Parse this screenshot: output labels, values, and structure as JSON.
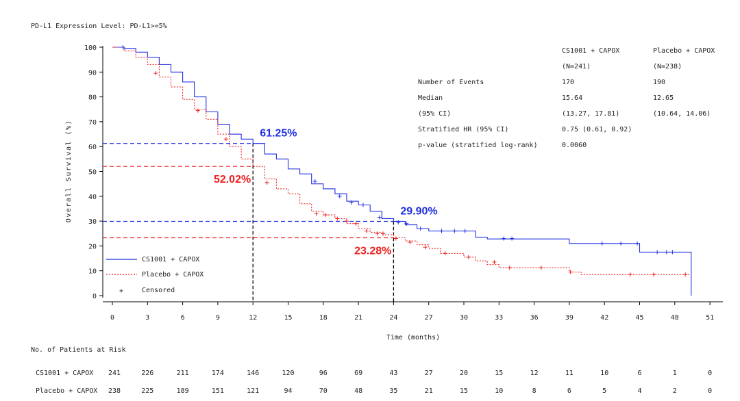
{
  "colors": {
    "arm1": "#1f2fe0",
    "arm2": "#ee2020",
    "axis": "#000000",
    "text": "#222222"
  },
  "chart_data": {
    "type": "line",
    "subtitle": "PD-L1 Expression Level: PD-L1>=5%",
    "xlabel": "Time (months)",
    "ylabel": "Overall Survival (%)",
    "xlim": [
      0,
      51
    ],
    "ylim": [
      0,
      100
    ],
    "xticks": [
      0,
      3,
      6,
      9,
      12,
      15,
      18,
      21,
      24,
      27,
      30,
      33,
      36,
      39,
      42,
      45,
      48,
      51
    ],
    "yticks": [
      0,
      10,
      20,
      30,
      40,
      50,
      60,
      70,
      80,
      90,
      100
    ],
    "legend": [
      "CS1001 + CAPOX",
      "Placebo + CAPOX",
      "Censored"
    ],
    "legend_censored_symbol": "+",
    "legend_position": "bottom-left",
    "series": [
      {
        "name": "CS1001 + CAPOX",
        "style": "solid",
        "points": [
          [
            0,
            100
          ],
          [
            1,
            99.5
          ],
          [
            2,
            98
          ],
          [
            3,
            96
          ],
          [
            4,
            93
          ],
          [
            5,
            90
          ],
          [
            6,
            86
          ],
          [
            7,
            80
          ],
          [
            8,
            74
          ],
          [
            9,
            69
          ],
          [
            10,
            65
          ],
          [
            11,
            63
          ],
          [
            12,
            61.25
          ],
          [
            13,
            57
          ],
          [
            14,
            55
          ],
          [
            15,
            51
          ],
          [
            16,
            49
          ],
          [
            17,
            45
          ],
          [
            18,
            43
          ],
          [
            19,
            41
          ],
          [
            20,
            38
          ],
          [
            21,
            36.5
          ],
          [
            22,
            34
          ],
          [
            23,
            31
          ],
          [
            24,
            29.9
          ],
          [
            25,
            28.5
          ],
          [
            26,
            27
          ],
          [
            27,
            26
          ],
          [
            28,
            26
          ],
          [
            30,
            26
          ],
          [
            31,
            23.5
          ],
          [
            32,
            22.8
          ],
          [
            33,
            22.8
          ],
          [
            35,
            22.8
          ],
          [
            38,
            22.8
          ],
          [
            39,
            21
          ],
          [
            41,
            21
          ],
          [
            43,
            21
          ],
          [
            44.5,
            21
          ],
          [
            45,
            17.5
          ],
          [
            47,
            17.5
          ],
          [
            49.4,
            17.5
          ],
          [
            49.4,
            0
          ]
        ],
        "censored": [
          [
            0.9,
            100
          ],
          [
            17.3,
            46
          ],
          [
            19.4,
            40
          ],
          [
            20.4,
            37.5
          ],
          [
            21.4,
            36.5
          ],
          [
            22.8,
            31.5
          ],
          [
            24.4,
            29.5
          ],
          [
            25.1,
            29
          ],
          [
            26.3,
            27
          ],
          [
            28.1,
            26
          ],
          [
            29.2,
            26
          ],
          [
            30.1,
            26
          ],
          [
            33.4,
            23
          ],
          [
            34.1,
            23
          ],
          [
            41.8,
            21
          ],
          [
            43.4,
            21
          ],
          [
            44.8,
            21
          ],
          [
            46.5,
            17.5
          ],
          [
            47.3,
            17.5
          ],
          [
            47.8,
            17.5
          ]
        ]
      },
      {
        "name": "Placebo + CAPOX",
        "style": "dashed",
        "points": [
          [
            0,
            100
          ],
          [
            1,
            98.5
          ],
          [
            2,
            96
          ],
          [
            3,
            93
          ],
          [
            4,
            88
          ],
          [
            5,
            84
          ],
          [
            6,
            79
          ],
          [
            7,
            75
          ],
          [
            8,
            71
          ],
          [
            9,
            65
          ],
          [
            10,
            60
          ],
          [
            11,
            55
          ],
          [
            12,
            52.02
          ],
          [
            13,
            47
          ],
          [
            14,
            43
          ],
          [
            15,
            41
          ],
          [
            16,
            37
          ],
          [
            17,
            34
          ],
          [
            18,
            32.5
          ],
          [
            19,
            31
          ],
          [
            20,
            29
          ],
          [
            21,
            27
          ],
          [
            22,
            25.5
          ],
          [
            23,
            24.5
          ],
          [
            24,
            23.28
          ],
          [
            25,
            22
          ],
          [
            26,
            20.5
          ],
          [
            27,
            19
          ],
          [
            28,
            17
          ],
          [
            30,
            15.5
          ],
          [
            31,
            14
          ],
          [
            32,
            12.5
          ],
          [
            33,
            11.2
          ],
          [
            35,
            11.2
          ],
          [
            38,
            11.2
          ],
          [
            39,
            9.5
          ],
          [
            40,
            8.5
          ],
          [
            43,
            8.5
          ],
          [
            45,
            8.5
          ],
          [
            47,
            8.5
          ],
          [
            49.3,
            8.5
          ]
        ],
        "censored": [
          [
            3.7,
            89.5
          ],
          [
            7.3,
            74.5
          ],
          [
            9.7,
            63
          ],
          [
            13.2,
            45.5
          ],
          [
            17.4,
            33
          ],
          [
            18.2,
            32.5
          ],
          [
            19.2,
            31
          ],
          [
            20,
            30
          ],
          [
            20.8,
            29
          ],
          [
            21.7,
            26
          ],
          [
            22.6,
            25
          ],
          [
            23.1,
            25
          ],
          [
            24.2,
            23
          ],
          [
            25.4,
            21.5
          ],
          [
            26.7,
            19.5
          ],
          [
            28.4,
            17
          ],
          [
            30.4,
            15.5
          ],
          [
            32.6,
            13.5
          ],
          [
            33.9,
            11.2
          ],
          [
            36.6,
            11.2
          ],
          [
            39.1,
            9.5
          ],
          [
            44.2,
            8.5
          ],
          [
            46.2,
            8.5
          ],
          [
            48.9,
            8.5
          ]
        ]
      }
    ],
    "reference_lines": [
      {
        "month": 12,
        "value": 61.25,
        "label": "61.25%",
        "series": 0
      },
      {
        "month": 12,
        "value": 52.02,
        "label": "52.02%",
        "series": 1
      },
      {
        "month": 24,
        "value": 29.9,
        "label": "29.90%",
        "series": 0
      },
      {
        "month": 24,
        "value": 23.28,
        "label": "23.28%",
        "series": 1
      }
    ]
  },
  "stats_table": {
    "col1_head": [
      "CS1001 + CAPOX",
      "(N=241)"
    ],
    "col2_head": [
      "Placebo + CAPOX",
      "(N=238)"
    ],
    "rows": [
      [
        "Number of Events",
        "170",
        "190"
      ],
      [
        "Median",
        "15.64",
        "12.65"
      ],
      [
        "(95% CI)",
        "(13.27, 17.81)",
        "(10.64, 14.06)"
      ],
      [
        "Stratified HR (95% CI)",
        "0.75 (0.61, 0.92)",
        ""
      ],
      [
        "p-value (stratified log-rank)",
        "0.0060",
        ""
      ]
    ]
  },
  "risk_table": {
    "title": "No. of Patients at Risk",
    "rows": [
      {
        "label": "CS1001 + CAPOX",
        "values": [
          241,
          226,
          211,
          174,
          146,
          120,
          96,
          69,
          43,
          27,
          20,
          15,
          12,
          11,
          10,
          6,
          1,
          0
        ]
      },
      {
        "label": "Placebo + CAPOX",
        "values": [
          238,
          225,
          189,
          151,
          121,
          94,
          70,
          48,
          35,
          21,
          15,
          10,
          8,
          6,
          5,
          4,
          2,
          0
        ]
      }
    ]
  }
}
